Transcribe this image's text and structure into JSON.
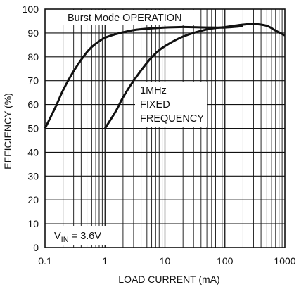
{
  "chart_data": {
    "type": "line",
    "xlabel": "LOAD CURRENT (mA)",
    "ylabel": "EFFICIENCY (%)",
    "x_scale": "log",
    "xlim": [
      0.1,
      1000
    ],
    "ylim": [
      0,
      100
    ],
    "grid": true,
    "x_ticks": [
      0.1,
      1,
      10,
      100,
      1000
    ],
    "x_tick_labels": [
      "0.1",
      "1",
      "10",
      "100",
      "1000"
    ],
    "y_ticks": [
      0,
      10,
      20,
      30,
      40,
      50,
      60,
      70,
      80,
      90,
      100
    ],
    "y_tick_labels": [
      "0",
      "10",
      "20",
      "30",
      "40",
      "50",
      "60",
      "70",
      "80",
      "90",
      "100"
    ],
    "series": [
      {
        "name": "Burst Mode OPERATION",
        "color": "#111111",
        "points": [
          [
            0.1,
            50
          ],
          [
            0.15,
            59
          ],
          [
            0.2,
            66
          ],
          [
            0.3,
            74
          ],
          [
            0.5,
            82
          ],
          [
            0.7,
            85.5
          ],
          [
            1,
            88
          ],
          [
            1.5,
            89.5
          ],
          [
            2,
            90.3
          ],
          [
            3,
            91.2
          ],
          [
            5,
            91.8
          ],
          [
            10,
            92.3
          ],
          [
            20,
            92.5
          ],
          [
            50,
            92.3
          ],
          [
            100,
            92.3
          ],
          [
            200,
            92.9
          ]
        ]
      },
      {
        "name": "1MHz FIXED FREQUENCY",
        "color": "#111111",
        "points": [
          [
            1,
            50
          ],
          [
            1.5,
            57
          ],
          [
            2,
            63
          ],
          [
            3,
            70
          ],
          [
            5,
            77.5
          ],
          [
            7,
            81.5
          ],
          [
            10,
            84.5
          ],
          [
            20,
            88.5
          ],
          [
            50,
            91.5
          ],
          [
            100,
            92.5
          ],
          [
            200,
            93.5
          ],
          [
            300,
            93.8
          ],
          [
            500,
            93
          ],
          [
            700,
            91
          ],
          [
            1000,
            89
          ]
        ]
      }
    ],
    "annotations": [
      {
        "id": "burst",
        "lines": [
          "Burst Mode OPERATION"
        ]
      },
      {
        "id": "fixed",
        "lines": [
          "1MHz",
          "FIXED",
          "FREQUENCY"
        ]
      },
      {
        "id": "vin",
        "prefix": "V",
        "subscript": "IN",
        "suffix": " = 3.6V"
      }
    ]
  }
}
